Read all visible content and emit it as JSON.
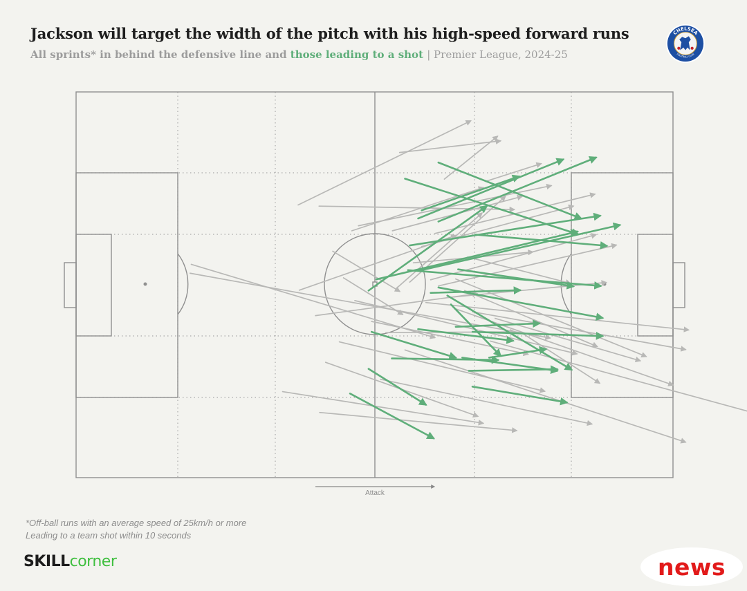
{
  "header": {
    "title": "Jackson will target the width of the pitch with his high-speed forward runs",
    "subtitle_lead": "All sprints* in behind the defensive line and",
    "subtitle_highlight": "those leading to a shot",
    "subtitle_tail": "| Premier League, 2024-25"
  },
  "crest": {
    "top_text": "CHELSEA",
    "bottom_text": "FOOTBALL CLUB",
    "icon": "lion-crest-icon"
  },
  "pitch": {
    "direction_label": "Attack"
  },
  "footnotes": {
    "line1": "*Off-ball runs with an average speed of 25km/h or more",
    "line2": "Leading to a team shot within 10 seconds"
  },
  "brand": {
    "part1": "SKILL",
    "part2": "corner"
  },
  "badge": {
    "text": "news"
  },
  "colors": {
    "run": "#b8b8b6",
    "shot_run": "#5fae7a",
    "lines": "#9a9a9a",
    "background": "#f3f3ef"
  },
  "chart_data": {
    "type": "scatter",
    "description_axes": "pitch length 0-100 (left goal to right goal), pitch width 0-100 (top touchline to bottom)",
    "xlim": [
      0,
      100
    ],
    "ylim": [
      0,
      100
    ],
    "runs": [
      {
        "x1": 37.2,
        "y1": 29.3,
        "x2": 66.1,
        "y2": 7.5,
        "shot": false
      },
      {
        "x1": 54.2,
        "y1": 15.7,
        "x2": 71.1,
        "y2": 12.7,
        "shot": false
      },
      {
        "x1": 61.7,
        "y1": 22.6,
        "x2": 70.6,
        "y2": 11.5,
        "shot": false
      },
      {
        "x1": 68.6,
        "y1": 23.2,
        "x2": 77.9,
        "y2": 18.6,
        "shot": false
      },
      {
        "x1": 40.7,
        "y1": 29.6,
        "x2": 73.4,
        "y2": 30.5,
        "shot": false
      },
      {
        "x1": 46.2,
        "y1": 36.0,
        "x2": 68.2,
        "y2": 24.8,
        "shot": false
      },
      {
        "x1": 47.3,
        "y1": 34.7,
        "x2": 79.6,
        "y2": 24.3,
        "shot": false
      },
      {
        "x1": 53.0,
        "y1": 36.0,
        "x2": 74.7,
        "y2": 27.1,
        "shot": false
      },
      {
        "x1": 60.1,
        "y1": 36.7,
        "x2": 86.9,
        "y2": 26.5,
        "shot": false
      },
      {
        "x1": 57.9,
        "y1": 40.1,
        "x2": 83.3,
        "y2": 29.6,
        "shot": false
      },
      {
        "x1": 53.9,
        "y1": 50.6,
        "x2": 68.0,
        "y2": 31.4,
        "shot": false
      },
      {
        "x1": 55.9,
        "y1": 49.3,
        "x2": 71.9,
        "y2": 27.1,
        "shot": false
      },
      {
        "x1": 56.5,
        "y1": 44.3,
        "x2": 76.5,
        "y2": 41.5,
        "shot": false
      },
      {
        "x1": 59.4,
        "y1": 48.7,
        "x2": 87.1,
        "y2": 37.0,
        "shot": false
      },
      {
        "x1": 60.7,
        "y1": 50.3,
        "x2": 90.5,
        "y2": 39.7,
        "shot": false
      },
      {
        "x1": 62.3,
        "y1": 53.3,
        "x2": 88.8,
        "y2": 49.4,
        "shot": false
      },
      {
        "x1": 65.6,
        "y1": 42.8,
        "x2": 82.8,
        "y2": 49.6,
        "shot": false
      },
      {
        "x1": 19.1,
        "y1": 47.0,
        "x2": 79.4,
        "y2": 63.8,
        "shot": false
      },
      {
        "x1": 19.3,
        "y1": 44.7,
        "x2": 60.1,
        "y2": 63.7,
        "shot": false
      },
      {
        "x1": 37.4,
        "y1": 51.4,
        "x2": 63.6,
        "y2": 37.2,
        "shot": false
      },
      {
        "x1": 40.1,
        "y1": 58.0,
        "x2": 67.2,
        "y2": 52.3,
        "shot": false
      },
      {
        "x1": 43.0,
        "y1": 41.3,
        "x2": 54.2,
        "y2": 51.7,
        "shot": false
      },
      {
        "x1": 44.8,
        "y1": 48.2,
        "x2": 54.7,
        "y2": 57.7,
        "shot": false
      },
      {
        "x1": 46.7,
        "y1": 54.1,
        "x2": 83.9,
        "y2": 67.9,
        "shot": false
      },
      {
        "x1": 49.5,
        "y1": 59.5,
        "x2": 75.7,
        "y2": 68.0,
        "shot": false
      },
      {
        "x1": 51.9,
        "y1": 62.4,
        "x2": 73.5,
        "y2": 62.2,
        "shot": false
      },
      {
        "x1": 58.6,
        "y1": 54.6,
        "x2": 102.6,
        "y2": 61.7,
        "shot": false
      },
      {
        "x1": 63.6,
        "y1": 48.5,
        "x2": 95.5,
        "y2": 68.6,
        "shot": false
      },
      {
        "x1": 65.1,
        "y1": 51.5,
        "x2": 87.3,
        "y2": 66.0,
        "shot": false
      },
      {
        "x1": 66.4,
        "y1": 57.0,
        "x2": 102.1,
        "y2": 66.8,
        "shot": false
      },
      {
        "x1": 63.5,
        "y1": 56.2,
        "x2": 100.0,
        "y2": 76.0,
        "shot": false
      },
      {
        "x1": 69.4,
        "y1": 64.6,
        "x2": 115.2,
        "y2": 83.9,
        "shot": false
      },
      {
        "x1": 70.2,
        "y1": 58.7,
        "x2": 94.5,
        "y2": 69.7,
        "shot": false
      },
      {
        "x1": 34.6,
        "y1": 77.7,
        "x2": 68.2,
        "y2": 85.9,
        "shot": false
      },
      {
        "x1": 40.8,
        "y1": 83.1,
        "x2": 73.8,
        "y2": 87.8,
        "shot": false
      },
      {
        "x1": 51.0,
        "y1": 74.5,
        "x2": 86.4,
        "y2": 86.1,
        "shot": false
      },
      {
        "x1": 41.8,
        "y1": 70.1,
        "x2": 67.3,
        "y2": 84.1,
        "shot": false
      },
      {
        "x1": 44.1,
        "y1": 64.8,
        "x2": 78.5,
        "y2": 77.6,
        "shot": false
      },
      {
        "x1": 55.1,
        "y1": 66.9,
        "x2": 102.1,
        "y2": 90.8,
        "shot": false
      },
      {
        "x1": 74.7,
        "y1": 62.5,
        "x2": 87.7,
        "y2": 75.5,
        "shot": false
      },
      {
        "x1": 60.7,
        "y1": 18.3,
        "x2": 84.6,
        "y2": 32.8,
        "shot": true
      },
      {
        "x1": 55.1,
        "y1": 22.5,
        "x2": 84.1,
        "y2": 36.9,
        "shot": true
      },
      {
        "x1": 57.3,
        "y1": 32.8,
        "x2": 81.6,
        "y2": 17.5,
        "shot": true
      },
      {
        "x1": 60.7,
        "y1": 33.6,
        "x2": 87.1,
        "y2": 17.0,
        "shot": true
      },
      {
        "x1": 57.9,
        "y1": 30.7,
        "x2": 74.2,
        "y2": 21.9,
        "shot": true
      },
      {
        "x1": 55.9,
        "y1": 39.8,
        "x2": 87.8,
        "y2": 32.1,
        "shot": true
      },
      {
        "x1": 50.3,
        "y1": 48.6,
        "x2": 84.0,
        "y2": 36.2,
        "shot": true
      },
      {
        "x1": 66.9,
        "y1": 37.0,
        "x2": 88.9,
        "y2": 39.9,
        "shot": true
      },
      {
        "x1": 64.0,
        "y1": 46.0,
        "x2": 83.3,
        "y2": 50.4,
        "shot": true
      },
      {
        "x1": 57.3,
        "y1": 46.4,
        "x2": 91.1,
        "y2": 34.5,
        "shot": true
      },
      {
        "x1": 59.4,
        "y1": 52.1,
        "x2": 74.4,
        "y2": 51.4,
        "shot": true
      },
      {
        "x1": 49.0,
        "y1": 51.5,
        "x2": 68.8,
        "y2": 29.6,
        "shot": true
      },
      {
        "x1": 55.6,
        "y1": 46.2,
        "x2": 87.9,
        "y2": 50.3,
        "shot": true
      },
      {
        "x1": 60.7,
        "y1": 50.7,
        "x2": 88.2,
        "y2": 58.6,
        "shot": true
      },
      {
        "x1": 62.8,
        "y1": 55.1,
        "x2": 71.1,
        "y2": 68.4,
        "shot": true
      },
      {
        "x1": 63.6,
        "y1": 60.9,
        "x2": 77.6,
        "y2": 60.0,
        "shot": true
      },
      {
        "x1": 66.4,
        "y1": 62.2,
        "x2": 88.2,
        "y2": 63.3,
        "shot": true
      },
      {
        "x1": 69.2,
        "y1": 68.9,
        "x2": 78.7,
        "y2": 66.7,
        "shot": true
      },
      {
        "x1": 62.2,
        "y1": 52.8,
        "x2": 83.0,
        "y2": 72.0,
        "shot": true
      },
      {
        "x1": 57.3,
        "y1": 61.5,
        "x2": 73.2,
        "y2": 64.5,
        "shot": true
      },
      {
        "x1": 49.5,
        "y1": 62.2,
        "x2": 63.6,
        "y2": 68.9,
        "shot": true
      },
      {
        "x1": 52.9,
        "y1": 69.1,
        "x2": 70.7,
        "y2": 69.5,
        "shot": true
      },
      {
        "x1": 64.7,
        "y1": 68.9,
        "x2": 80.6,
        "y2": 72.3,
        "shot": true
      },
      {
        "x1": 65.8,
        "y1": 72.3,
        "x2": 80.6,
        "y2": 71.9,
        "shot": true
      },
      {
        "x1": 66.4,
        "y1": 76.4,
        "x2": 82.2,
        "y2": 80.5,
        "shot": true
      },
      {
        "x1": 49.0,
        "y1": 71.8,
        "x2": 58.6,
        "y2": 81.1,
        "shot": true
      },
      {
        "x1": 45.9,
        "y1": 78.2,
        "x2": 59.9,
        "y2": 89.8,
        "shot": true
      }
    ]
  }
}
